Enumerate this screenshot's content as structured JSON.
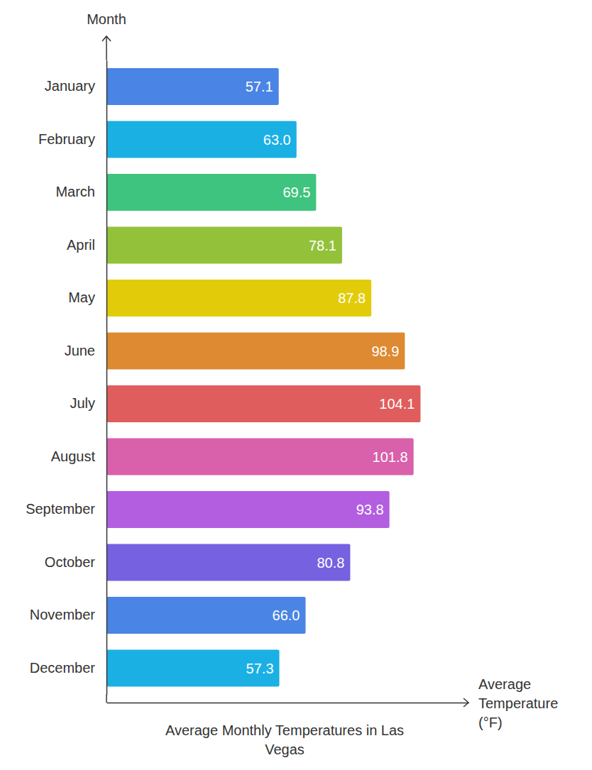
{
  "chart_data": {
    "type": "bar",
    "orientation": "horizontal",
    "title": "Average Monthly Temperatures in Las Vegas",
    "x_label": "Average Temperature (°F)",
    "y_label": "Month",
    "categories": [
      "January",
      "February",
      "March",
      "April",
      "May",
      "June",
      "July",
      "August",
      "September",
      "October",
      "November",
      "December"
    ],
    "values": [
      57.1,
      63.0,
      69.5,
      78.1,
      87.8,
      98.9,
      104.1,
      101.8,
      93.8,
      80.8,
      66.0,
      57.3
    ],
    "value_labels": [
      "57.1",
      "63.0",
      "69.5",
      "78.1",
      "87.8",
      "98.9",
      "104.1",
      "101.8",
      "93.8",
      "80.8",
      "66.0",
      "57.3"
    ],
    "colors": [
      "#4a84e4",
      "#1ab0e4",
      "#3ec47e",
      "#93c23a",
      "#e2cc0a",
      "#de8a33",
      "#e05d5d",
      "#d960aa",
      "#b35ee0",
      "#7661e0",
      "#4a84e4",
      "#1ab0e4"
    ],
    "xlim": [
      0,
      120
    ],
    "xticks": [],
    "tick_labels": "y",
    "data_labels": true,
    "grid": false
  }
}
